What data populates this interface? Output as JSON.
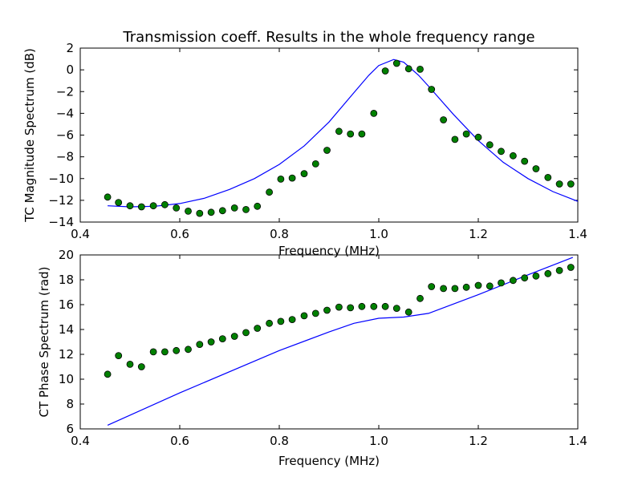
{
  "chart_data": [
    {
      "type": "scatter",
      "title": "Transmission coeff. Results in the whole frequency range",
      "xlabel": "Frequency (MHz)",
      "ylabel": "TC Magnitude Spectrum (dB)",
      "xlim": [
        0.4,
        1.4
      ],
      "ylim": [
        -14,
        2
      ],
      "xticks": [
        "0.4",
        "0.6",
        "0.8",
        "1.0",
        "1.2",
        "1.4"
      ],
      "yticks": [
        "2",
        "0",
        "−2",
        "−4",
        "−6",
        "−8",
        "−10",
        "−12",
        "−14"
      ],
      "grid": false,
      "series": [
        {
          "kind": "line",
          "color": "#0000ff",
          "x": [
            0.455,
            0.5,
            0.55,
            0.6,
            0.65,
            0.7,
            0.75,
            0.8,
            0.85,
            0.9,
            0.95,
            0.98,
            1.0,
            1.03,
            1.05,
            1.08,
            1.1,
            1.15,
            1.2,
            1.25,
            1.3,
            1.35,
            1.4
          ],
          "y": [
            -12.5,
            -12.6,
            -12.55,
            -12.3,
            -11.8,
            -11.0,
            -10.0,
            -8.7,
            -7.0,
            -4.8,
            -2.1,
            -0.5,
            0.4,
            0.95,
            0.7,
            -0.5,
            -1.5,
            -4.1,
            -6.5,
            -8.5,
            -10.0,
            -11.2,
            -12.1
          ]
        },
        {
          "kind": "scatter",
          "color": "#008000",
          "x": [
            0.455,
            0.477,
            0.5,
            0.523,
            0.547,
            0.57,
            0.593,
            0.617,
            0.64,
            0.663,
            0.686,
            0.71,
            0.733,
            0.756,
            0.78,
            0.803,
            0.826,
            0.85,
            0.873,
            0.896,
            0.92,
            0.943,
            0.966,
            0.99,
            1.013,
            1.036,
            1.06,
            1.083,
            1.106,
            1.13,
            1.153,
            1.176,
            1.2,
            1.223,
            1.246,
            1.27,
            1.293,
            1.316,
            1.34,
            1.363,
            1.386
          ],
          "y": [
            -11.7,
            -12.2,
            -12.5,
            -12.6,
            -12.5,
            -12.4,
            -12.7,
            -13.0,
            -13.2,
            -13.1,
            -12.95,
            -12.7,
            -12.85,
            -12.55,
            -11.25,
            -10.05,
            -9.95,
            -9.55,
            -8.65,
            -7.4,
            -5.65,
            -5.9,
            -5.9,
            -4.0,
            -0.1,
            0.6,
            0.1,
            0.05,
            -1.8,
            -4.6,
            -6.4,
            -5.9,
            -6.2,
            -6.9,
            -7.5,
            -7.9,
            -8.4,
            -9.1,
            -9.9,
            -10.5,
            -10.5
          ]
        }
      ]
    },
    {
      "type": "scatter",
      "title": "",
      "xlabel": "Frequency (MHz)",
      "ylabel": "CT Phase Spectrum (rad)",
      "xlim": [
        0.4,
        1.4
      ],
      "ylim": [
        6,
        20
      ],
      "xticks": [
        "0.4",
        "0.6",
        "0.8",
        "1.0",
        "1.2",
        "1.4"
      ],
      "yticks": [
        "20",
        "18",
        "16",
        "14",
        "12",
        "10",
        "8",
        "6"
      ],
      "grid": false,
      "series": [
        {
          "kind": "line",
          "color": "#0000ff",
          "x": [
            0.455,
            0.6,
            0.8,
            0.9,
            0.95,
            1.0,
            1.05,
            1.1,
            1.2,
            1.3,
            1.39
          ],
          "y": [
            6.3,
            8.9,
            12.3,
            13.8,
            14.5,
            14.9,
            15.0,
            15.3,
            16.8,
            18.4,
            19.8
          ]
        },
        {
          "kind": "scatter",
          "color": "#008000",
          "x": [
            0.455,
            0.477,
            0.5,
            0.523,
            0.547,
            0.57,
            0.593,
            0.617,
            0.64,
            0.663,
            0.686,
            0.71,
            0.733,
            0.756,
            0.78,
            0.803,
            0.826,
            0.85,
            0.873,
            0.896,
            0.92,
            0.943,
            0.966,
            0.99,
            1.013,
            1.036,
            1.06,
            1.083,
            1.106,
            1.13,
            1.153,
            1.176,
            1.2,
            1.223,
            1.246,
            1.27,
            1.293,
            1.316,
            1.34,
            1.363,
            1.386
          ],
          "y": [
            10.4,
            11.9,
            11.2,
            11.0,
            12.2,
            12.2,
            12.3,
            12.4,
            12.8,
            13.0,
            13.25,
            13.45,
            13.75,
            14.1,
            14.5,
            14.65,
            14.8,
            15.1,
            15.3,
            15.55,
            15.8,
            15.75,
            15.85,
            15.85,
            15.85,
            15.7,
            15.4,
            16.5,
            17.45,
            17.3,
            17.3,
            17.4,
            17.55,
            17.5,
            17.75,
            17.95,
            18.15,
            18.3,
            18.5,
            18.75,
            19.0
          ]
        }
      ]
    }
  ]
}
